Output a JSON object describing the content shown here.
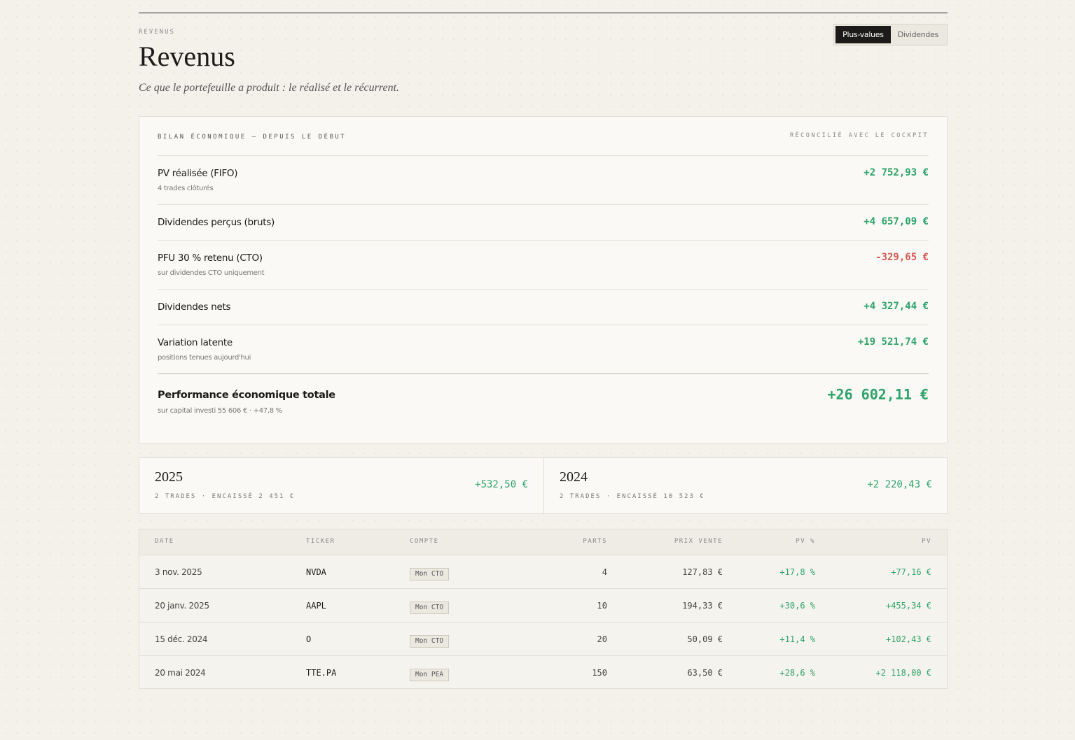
{
  "header": {
    "eyebrow": "REVENUS",
    "title": "Revenus",
    "subtitle": "Ce que le portefeuille a produit : le réalisé et le récurrent."
  },
  "tabs": [
    "Plus-values",
    "Dividendes"
  ],
  "summary": {
    "title": "BILAN ÉCONOMIQUE — DEPUIS LE DÉBUT",
    "note": "RÉCONCILIÉ AVEC LE COCKPIT",
    "rows": [
      {
        "label": "PV réalisée (FIFO)",
        "sub": "4 trades clôturés",
        "value": "+2 752,93 €"
      },
      {
        "label": "Dividendes perçus (bruts)",
        "value": "+4 657,09 €"
      },
      {
        "label": "PFU 30 % retenu (CTO)",
        "sub": "sur dividendes CTO uniquement",
        "value": "-329,65 €"
      },
      {
        "label": "Dividendes nets",
        "value": "+4 327,44 €"
      },
      {
        "label": "Variation latente",
        "sub": "positions tenues aujourd'hui",
        "value": "+19 521,74 €"
      }
    ],
    "total": {
      "label": "Performance économique totale",
      "sub": "sur capital investi 55 606 € · +47,8 %",
      "value": "+26 602,11 €"
    }
  },
  "years": [
    {
      "year": "2025",
      "meta": "2 TRADES · ENCAISSÉ 2 451 €",
      "value": "+532,50 €"
    },
    {
      "year": "2024",
      "meta": "2 TRADES · ENCAISSÉ 10 523 €",
      "value": "+2 220,43 €"
    }
  ],
  "table": {
    "columns": [
      "DATE",
      "TICKER",
      "COMPTE",
      "PARTS",
      "PRIX VENTE",
      "PV %",
      "PV"
    ],
    "rows": [
      [
        "3 nov. 2025",
        "NVDA",
        "Mon CTO",
        "4",
        "127,83 €",
        "+17,8 %",
        "+77,16 €"
      ],
      [
        "20 janv. 2025",
        "AAPL",
        "Mon CTO",
        "10",
        "194,33 €",
        "+30,6 %",
        "+455,34 €"
      ],
      [
        "15 déc. 2024",
        "O",
        "Mon CTO",
        "20",
        "50,09 €",
        "+11,4 %",
        "+102,43 €"
      ],
      [
        "20 mai 2024",
        "TTE.PA",
        "Mon PEA",
        "150",
        "63,50 €",
        "+28,6 %",
        "+2 118,00 €"
      ]
    ]
  }
}
